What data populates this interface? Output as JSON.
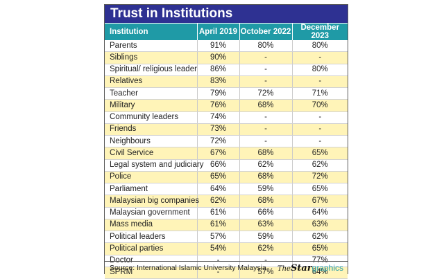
{
  "title": "Trust in Institutions",
  "columns": [
    "Institution",
    "April 2019",
    "October 2022",
    "December 2023"
  ],
  "rows": [
    [
      "Parents",
      "91%",
      "80%",
      "80%"
    ],
    [
      "Siblings",
      "90%",
      "-",
      "-"
    ],
    [
      "Spiritual/ religious leader",
      "86%",
      "-",
      "80%"
    ],
    [
      "Relatives",
      "83%",
      "-",
      "-"
    ],
    [
      "Teacher",
      "79%",
      "72%",
      "71%"
    ],
    [
      "Military",
      "76%",
      "68%",
      "70%"
    ],
    [
      "Community leaders",
      "74%",
      "-",
      "-"
    ],
    [
      "Friends",
      "73%",
      "-",
      "-"
    ],
    [
      "Neighbours",
      "72%",
      "-",
      "-"
    ],
    [
      "Civil Service",
      "67%",
      "68%",
      "65%"
    ],
    [
      "Legal system and judiciary",
      "66%",
      "62%",
      "62%"
    ],
    [
      "Police",
      "65%",
      "68%",
      "72%"
    ],
    [
      "Parliament",
      "64%",
      "59%",
      "65%"
    ],
    [
      "Malaysian big companies",
      "62%",
      "68%",
      "67%"
    ],
    [
      "Malaysian government",
      "61%",
      "66%",
      "64%"
    ],
    [
      "Mass media",
      "61%",
      "63%",
      "63%"
    ],
    [
      "Political leaders",
      "57%",
      "59%",
      "62%"
    ],
    [
      "Political parties",
      "54%",
      "62%",
      "65%"
    ],
    [
      "Doctor",
      "-",
      "-",
      "77%"
    ],
    [
      "SPRM",
      "-",
      "57%",
      "64%"
    ]
  ],
  "colors": {
    "title_bg": "#2e3192",
    "header_bg": "#1f9aa6",
    "alt_row_bg": "#fff4b8"
  },
  "footer": {
    "source": "Source: International Islamic University Malaysia",
    "brand_the": "The",
    "brand_star": "Star",
    "brand_graphics": "graphics"
  }
}
